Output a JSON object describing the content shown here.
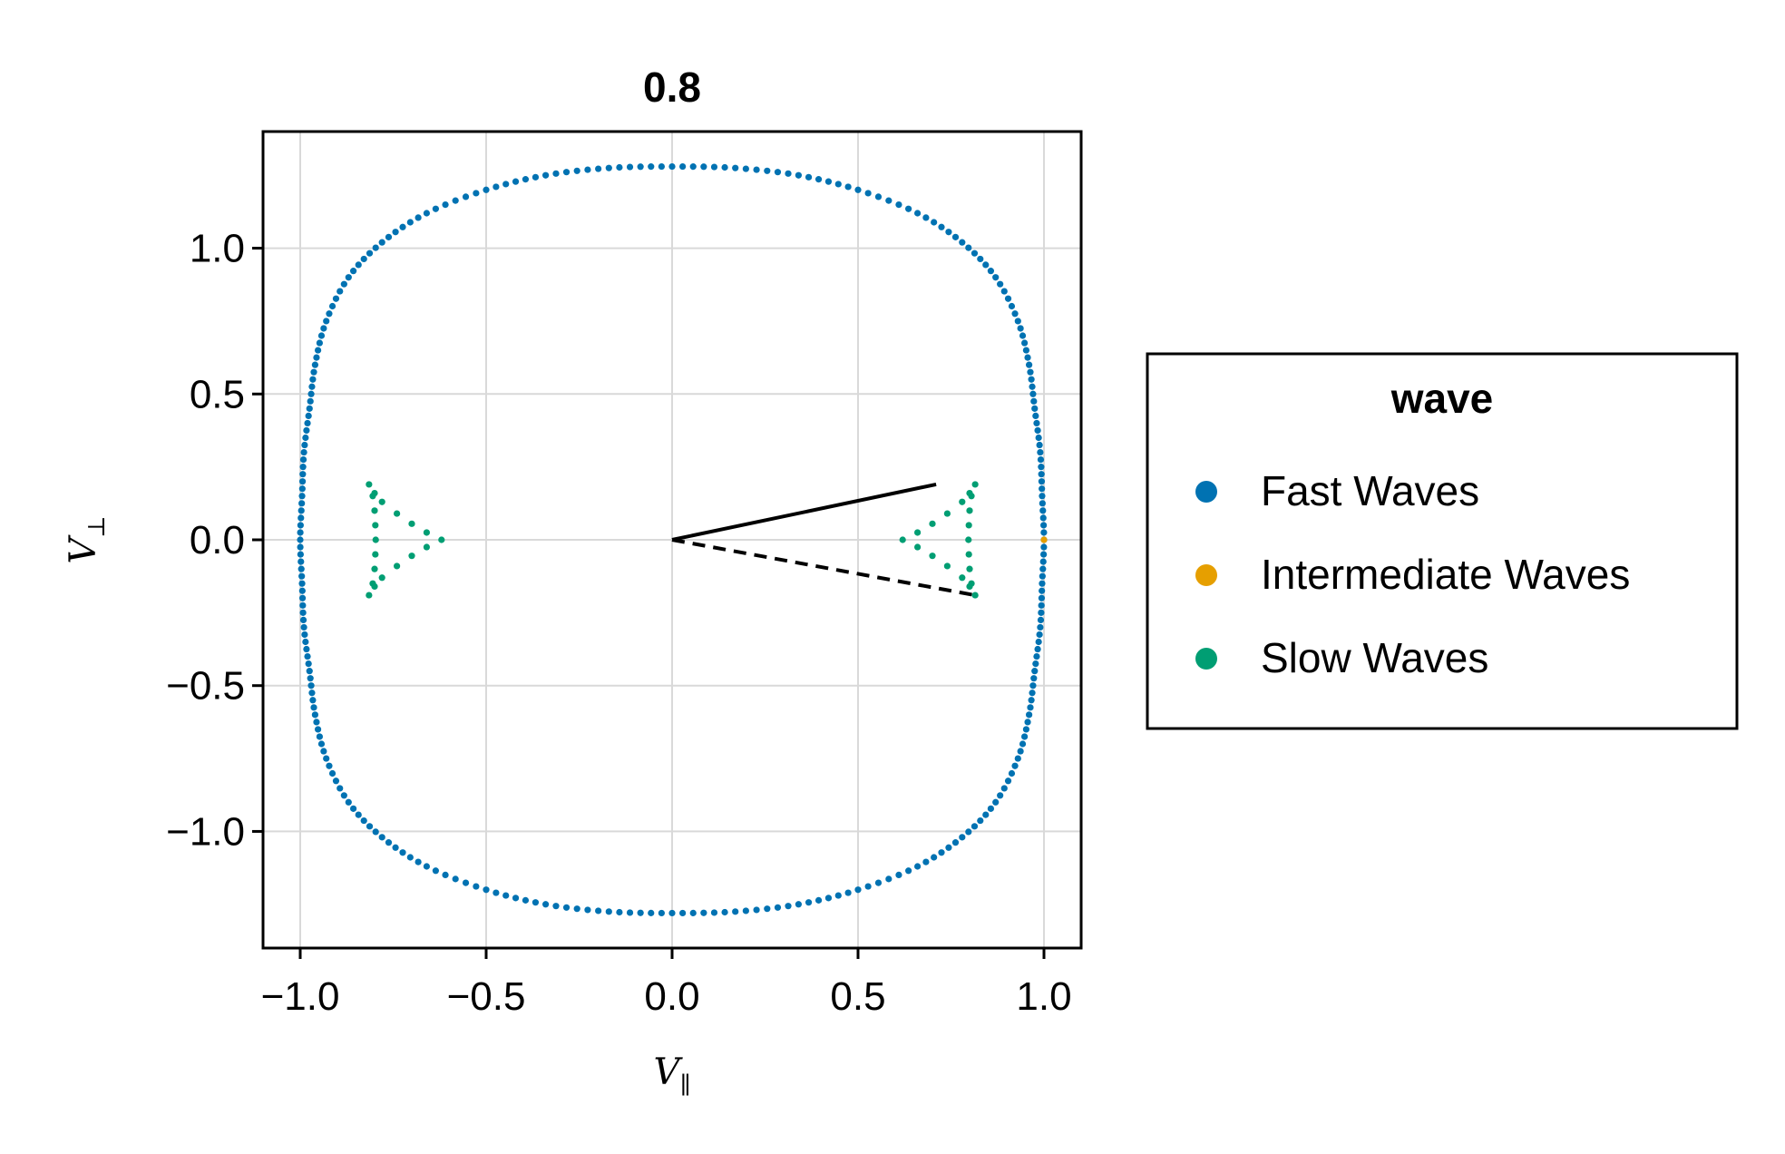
{
  "chart_data": {
    "type": "scatter",
    "title": "0.8",
    "xlabel": {
      "main": "V",
      "sub": "∥"
    },
    "ylabel": {
      "main": "V",
      "sub": "⊥"
    },
    "xlim": [
      -1.1,
      1.1
    ],
    "ylim": [
      -1.4,
      1.4
    ],
    "xticks": [
      -1.0,
      -0.5,
      0.0,
      0.5,
      1.0
    ],
    "xtick_labels": [
      "−1.0",
      "−0.5",
      "0.0",
      "0.5",
      "1.0"
    ],
    "yticks": [
      -1.0,
      -0.5,
      0.0,
      0.5,
      1.0
    ],
    "ytick_labels": [
      "−1.0",
      "−0.5",
      "0.0",
      "0.5",
      "1.0"
    ],
    "grid": true,
    "legend": {
      "title": "wave",
      "placement": "right",
      "entries": [
        {
          "label": "Fast Waves",
          "color": "#0072b2"
        },
        {
          "label": "Intermediate Waves",
          "color": "#e69f00"
        },
        {
          "label": "Slow Waves",
          "color": "#009e73"
        }
      ]
    },
    "series": [
      {
        "name": "Fast Waves",
        "color": "#0072b2",
        "points": [
          [
            -1.0,
            0.0
          ],
          [
            -0.995,
            0.15
          ],
          [
            -0.99,
            0.3
          ],
          [
            -0.975,
            0.45
          ],
          [
            -0.96,
            0.6
          ],
          [
            -0.93,
            0.75
          ],
          [
            -0.87,
            0.9
          ],
          [
            -0.78,
            1.02
          ],
          [
            -0.66,
            1.12
          ],
          [
            -0.5,
            1.2
          ],
          [
            -0.34,
            1.25
          ],
          [
            -0.17,
            1.275
          ],
          [
            0.0,
            1.28
          ],
          [
            0.17,
            1.275
          ],
          [
            0.34,
            1.25
          ],
          [
            0.5,
            1.2
          ],
          [
            0.66,
            1.12
          ],
          [
            0.78,
            1.02
          ],
          [
            0.87,
            0.9
          ],
          [
            0.93,
            0.75
          ],
          [
            0.96,
            0.6
          ],
          [
            0.975,
            0.45
          ],
          [
            0.99,
            0.3
          ],
          [
            0.995,
            0.15
          ],
          [
            1.0,
            0.0
          ],
          [
            0.995,
            -0.15
          ],
          [
            0.99,
            -0.3
          ],
          [
            0.975,
            -0.45
          ],
          [
            0.96,
            -0.6
          ],
          [
            0.93,
            -0.75
          ],
          [
            0.87,
            -0.9
          ],
          [
            0.78,
            -1.02
          ],
          [
            0.66,
            -1.12
          ],
          [
            0.5,
            -1.2
          ],
          [
            0.34,
            -1.25
          ],
          [
            0.17,
            -1.275
          ],
          [
            0.0,
            -1.28
          ],
          [
            -0.17,
            -1.275
          ],
          [
            -0.34,
            -1.25
          ],
          [
            -0.5,
            -1.2
          ],
          [
            -0.66,
            -1.12
          ],
          [
            -0.78,
            -1.02
          ],
          [
            -0.87,
            -0.9
          ],
          [
            -0.93,
            -0.75
          ],
          [
            -0.96,
            -0.6
          ],
          [
            -0.975,
            -0.45
          ],
          [
            -0.99,
            -0.3
          ],
          [
            -0.995,
            -0.15
          ]
        ]
      },
      {
        "name": "Intermediate Waves",
        "color": "#e69f00",
        "points": [
          [
            1.0,
            0.0
          ]
        ]
      },
      {
        "name": "Slow Waves",
        "color": "#009e73",
        "points": [
          [
            0.62,
            0.0
          ],
          [
            0.66,
            0.025
          ],
          [
            0.7,
            0.055
          ],
          [
            0.74,
            0.09
          ],
          [
            0.78,
            0.13
          ],
          [
            0.8,
            0.16
          ],
          [
            0.815,
            0.19
          ],
          [
            0.66,
            -0.025
          ],
          [
            0.7,
            -0.055
          ],
          [
            0.74,
            -0.09
          ],
          [
            0.78,
            -0.13
          ],
          [
            0.8,
            -0.16
          ],
          [
            0.815,
            -0.19
          ],
          [
            0.805,
            0.15
          ],
          [
            0.8,
            0.1
          ],
          [
            0.798,
            0.05
          ],
          [
            0.797,
            0.0
          ],
          [
            0.798,
            -0.05
          ],
          [
            0.8,
            -0.1
          ],
          [
            0.805,
            -0.15
          ],
          [
            -0.62,
            0.0
          ],
          [
            -0.66,
            0.025
          ],
          [
            -0.7,
            0.055
          ],
          [
            -0.74,
            0.09
          ],
          [
            -0.78,
            0.13
          ],
          [
            -0.8,
            0.16
          ],
          [
            -0.815,
            0.19
          ],
          [
            -0.66,
            -0.025
          ],
          [
            -0.7,
            -0.055
          ],
          [
            -0.74,
            -0.09
          ],
          [
            -0.78,
            -0.13
          ],
          [
            -0.8,
            -0.16
          ],
          [
            -0.815,
            -0.19
          ],
          [
            -0.805,
            0.15
          ],
          [
            -0.8,
            0.1
          ],
          [
            -0.798,
            0.05
          ],
          [
            -0.797,
            0.0
          ],
          [
            -0.798,
            -0.05
          ],
          [
            -0.8,
            -0.1
          ],
          [
            -0.805,
            -0.15
          ]
        ]
      }
    ],
    "lines": [
      {
        "style": "solid",
        "color": "#000000",
        "points": [
          [
            0.0,
            0.0
          ],
          [
            0.71,
            0.19
          ]
        ]
      },
      {
        "style": "dashed",
        "color": "#000000",
        "points": [
          [
            0.0,
            0.0
          ],
          [
            0.815,
            -0.19
          ]
        ]
      }
    ]
  }
}
